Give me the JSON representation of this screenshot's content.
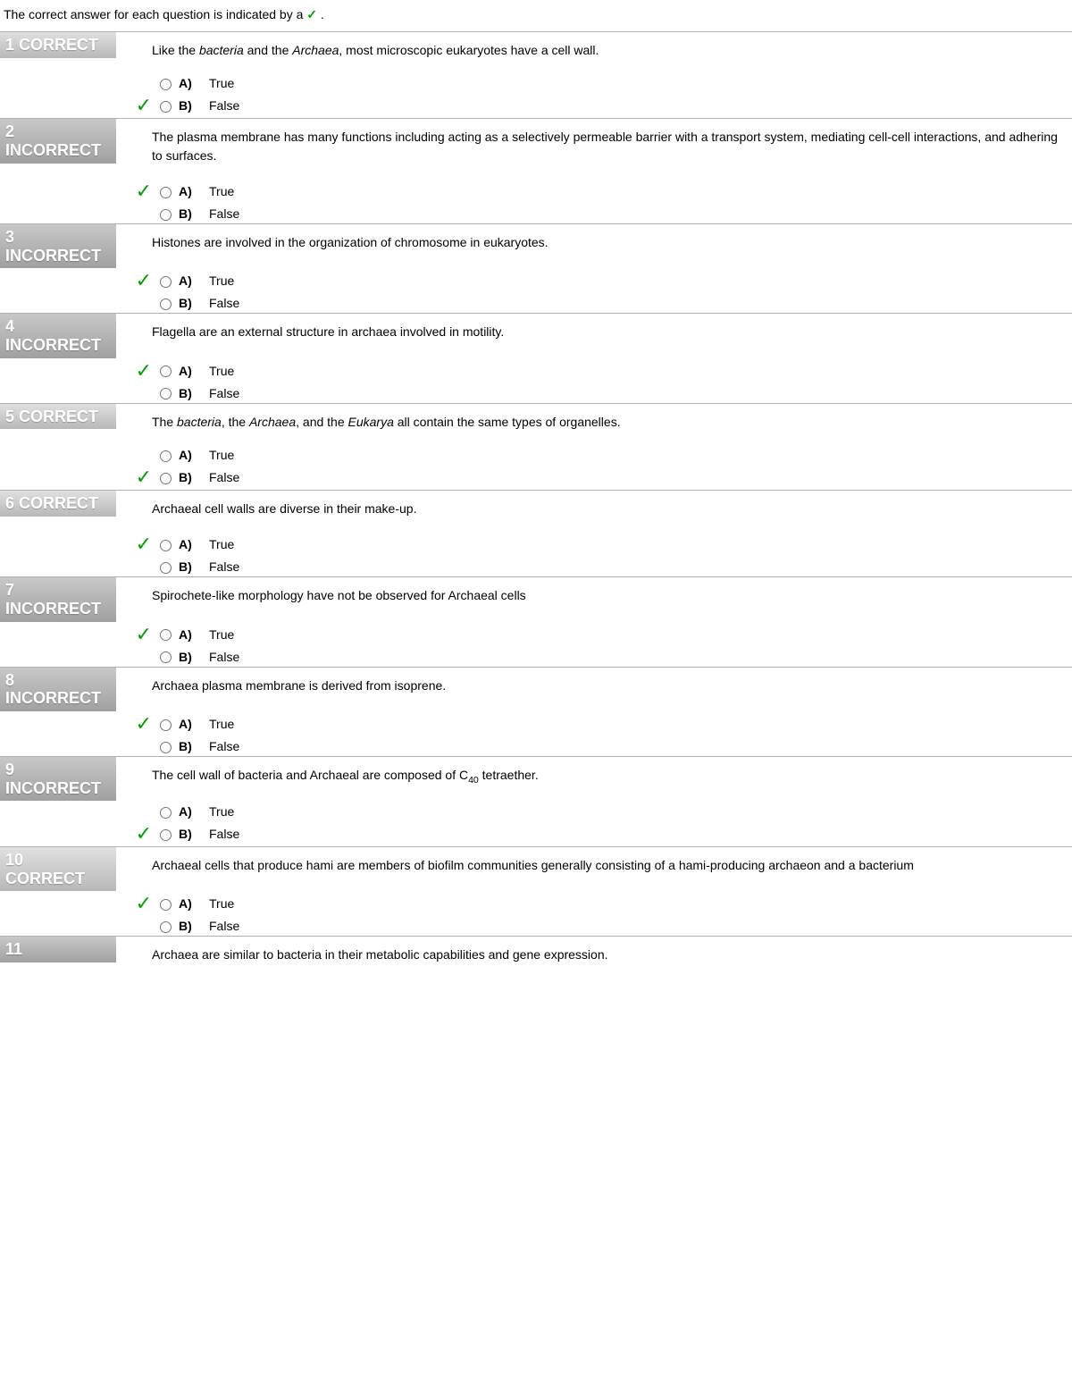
{
  "intro_prefix": "The correct answer for each question is indicated by a ",
  "intro_check": "✓",
  "intro_suffix": ".",
  "colors": {
    "check": "#00a000",
    "rule": "#b0b0b0",
    "badge_text": "#ffffff"
  },
  "option_labels": {
    "A": "A)",
    "B": "B)"
  },
  "option_texts": {
    "true": "True",
    "false": "False"
  },
  "items": [
    {
      "num": "1",
      "status": "CORRECT",
      "status_kind": "correct",
      "question_html": "Like the <em>bacteria</em> and the <em>Archaea</em>, most microscopic eukaryotes have a cell wall.",
      "correct": "B",
      "options": [
        "A",
        "B"
      ]
    },
    {
      "num": "2",
      "status": "INCORRECT",
      "status_kind": "incorrect",
      "question_html": "The plasma membrane has many functions including acting as a selectively permeable barrier with a transport system, mediating cell-cell interactions, and adhering to surfaces.",
      "correct": "A",
      "options": [
        "A",
        "B"
      ]
    },
    {
      "num": "3",
      "status": "INCORRECT",
      "status_kind": "incorrect",
      "question_html": "Histones are involved in the organization of chromosome in eukaryotes.",
      "correct": "A",
      "options": [
        "A",
        "B"
      ]
    },
    {
      "num": "4",
      "status": "INCORRECT",
      "status_kind": "incorrect",
      "question_html": "Flagella are an external structure in archaea involved in motility.",
      "correct": "A",
      "options": [
        "A",
        "B"
      ]
    },
    {
      "num": "5",
      "status": "CORRECT",
      "status_kind": "correct",
      "question_html": "The <em>bacteria</em>, the <em>Archaea</em>, and the <em>Eukarya</em> all contain the same types of organelles.",
      "correct": "B",
      "options": [
        "A",
        "B"
      ]
    },
    {
      "num": "6",
      "status": "CORRECT",
      "status_kind": "correct",
      "question_html": "Archaeal cell walls are diverse in their make-up.",
      "correct": "A",
      "options": [
        "A",
        "B"
      ]
    },
    {
      "num": "7",
      "status": "INCORRECT",
      "status_kind": "incorrect",
      "question_html": "Spirochete-like morphology have not be observed for Archaeal cells",
      "correct": "A",
      "options": [
        "A",
        "B"
      ]
    },
    {
      "num": "8",
      "status": "INCORRECT",
      "status_kind": "incorrect",
      "question_html": "Archaea plasma membrane is derived from isoprene.",
      "correct": "A",
      "options": [
        "A",
        "B"
      ]
    },
    {
      "num": "9",
      "status": "INCORRECT",
      "status_kind": "incorrect",
      "question_html": "The cell wall of bacteria and Archaeal are composed of C<sub>40</sub> tetraether.",
      "correct": "B",
      "options": [
        "A",
        "B"
      ]
    },
    {
      "num": "10",
      "status": "CORRECT",
      "status_kind": "correct",
      "question_html": "Archaeal cells that produce hami are members of biofilm communities generally consisting of a hami-producing archaeon and a bacterium",
      "correct": "A",
      "options": [
        "A",
        "B"
      ]
    },
    {
      "num": "11",
      "status": "",
      "status_kind": "incorrect",
      "question_html": "Archaea are similar to bacteria in their metabolic capabilities and gene expression.",
      "correct": null,
      "options": []
    }
  ]
}
